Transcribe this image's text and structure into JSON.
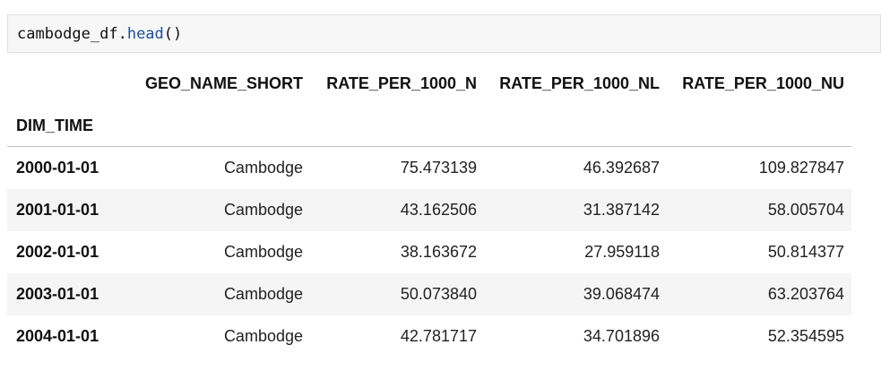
{
  "code": {
    "prefix": "cambodge_df.",
    "method": "head",
    "suffix": "()"
  },
  "table": {
    "columns": [
      "GEO_NAME_SHORT",
      "RATE_PER_1000_N",
      "RATE_PER_1000_NL",
      "RATE_PER_1000_NU"
    ],
    "index_name": "DIM_TIME",
    "rows": [
      {
        "index": "2000-01-01",
        "values": [
          "Cambodge",
          "75.473139",
          "46.392687",
          "109.827847"
        ]
      },
      {
        "index": "2001-01-01",
        "values": [
          "Cambodge",
          "43.162506",
          "31.387142",
          "58.005704"
        ]
      },
      {
        "index": "2002-01-01",
        "values": [
          "Cambodge",
          "38.163672",
          "27.959118",
          "50.814377"
        ]
      },
      {
        "index": "2003-01-01",
        "values": [
          "Cambodge",
          "50.073840",
          "39.068474",
          "63.203764"
        ]
      },
      {
        "index": "2004-01-01",
        "values": [
          "Cambodge",
          "42.781717",
          "34.701896",
          "52.354595"
        ]
      }
    ]
  }
}
